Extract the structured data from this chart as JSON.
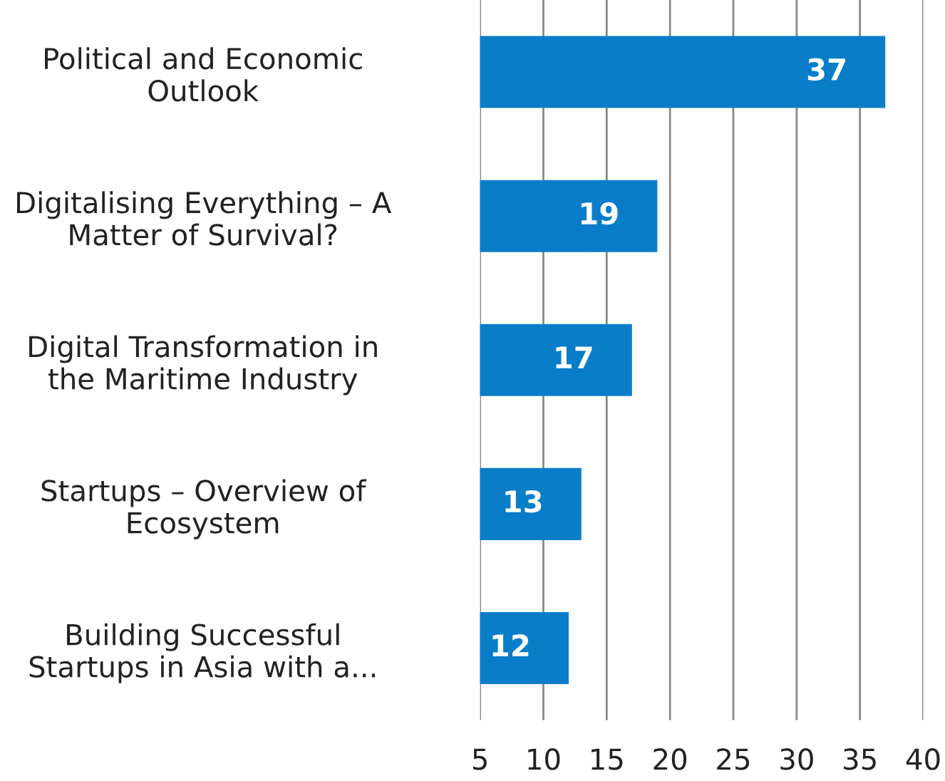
{
  "chart_data": {
    "type": "bar",
    "orientation": "horizontal",
    "categories": [
      "Political and Economic\nOutlook",
      "Digitalising Everything – A\nMatter of Survival?",
      "Digital Transformation in\nthe Maritime Industry",
      "Startups – Overview of\nEcosystem",
      "Building Successful\nStartups in Asia with a..."
    ],
    "values": [
      37,
      19,
      17,
      13,
      12
    ],
    "color": "#0a7dc9",
    "xlim": [
      5,
      40
    ],
    "xticks": [
      5,
      10,
      15,
      20,
      25,
      30,
      35,
      40
    ],
    "grid": "x",
    "data_labels": true,
    "legend": false
  }
}
